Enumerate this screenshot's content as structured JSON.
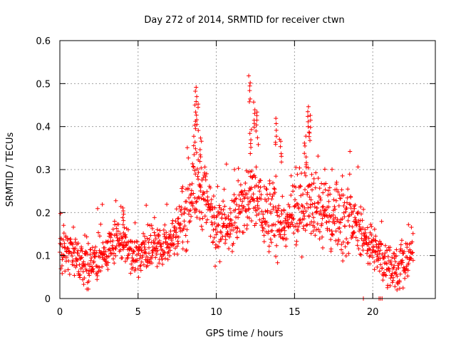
{
  "chart_data": {
    "type": "scatter",
    "title": "Day 272 of 2014, SRMTID for receiver ctwn",
    "xlabel": "GPS time / hours",
    "ylabel": "SRMTID / TECUs",
    "xlim": [
      0,
      24
    ],
    "ylim": [
      0,
      0.6
    ],
    "xticks": [
      0,
      5,
      10,
      15,
      20
    ],
    "xtick_labels": [
      "0",
      "5",
      "10",
      "15",
      "20"
    ],
    "yticks": [
      0,
      0.1,
      0.2,
      0.3,
      0.4,
      0.5,
      0.6
    ],
    "ytick_labels": [
      "0",
      "0.1",
      "0.2",
      "0.3",
      "0.4",
      "0.5",
      "0.6"
    ],
    "grid": true,
    "marker": "+",
    "marker_color": "#ff0000",
    "series": [
      {
        "name": "SRMTID",
        "profile_x": [
          0,
          0.5,
          1,
          1.5,
          2,
          2.5,
          3,
          3.5,
          4,
          4.5,
          5,
          5.5,
          6,
          6.5,
          7,
          7.5,
          8,
          8.5,
          9,
          9.5,
          10,
          10.5,
          11,
          11.5,
          12,
          12.5,
          13,
          13.5,
          14,
          14.5,
          15,
          15.5,
          16,
          16.5,
          17,
          17.5,
          18,
          18.5,
          19,
          19.5,
          20,
          20.5,
          21,
          21.5,
          22,
          22.5
        ],
        "profile_y": [
          0.12,
          0.11,
          0.1,
          0.08,
          0.08,
          0.09,
          0.11,
          0.13,
          0.14,
          0.11,
          0.1,
          0.11,
          0.12,
          0.12,
          0.13,
          0.16,
          0.2,
          0.26,
          0.25,
          0.21,
          0.19,
          0.17,
          0.18,
          0.2,
          0.23,
          0.24,
          0.2,
          0.19,
          0.18,
          0.17,
          0.19,
          0.22,
          0.25,
          0.22,
          0.2,
          0.19,
          0.2,
          0.19,
          0.17,
          0.14,
          0.12,
          0.09,
          0.08,
          0.07,
          0.07,
          0.12
        ],
        "spikes": [
          {
            "x": 8.7,
            "y": 0.5
          },
          {
            "x": 8.8,
            "y": 0.46
          },
          {
            "x": 8.6,
            "y": 0.42
          },
          {
            "x": 12.1,
            "y": 0.52
          },
          {
            "x": 12.4,
            "y": 0.46
          },
          {
            "x": 12.6,
            "y": 0.44
          },
          {
            "x": 13.8,
            "y": 0.42
          },
          {
            "x": 14.1,
            "y": 0.38
          },
          {
            "x": 15.9,
            "y": 0.45
          },
          {
            "x": 16.0,
            "y": 0.43
          },
          {
            "x": 15.7,
            "y": 0.38
          },
          {
            "x": 12.2,
            "y": 0.4
          },
          {
            "x": 9.0,
            "y": 0.38
          },
          {
            "x": 4.1,
            "y": 0.21
          }
        ],
        "zero_points": [
          {
            "x": 19.4,
            "y": 0
          },
          {
            "x": 20.4,
            "y": 0
          },
          {
            "x": 20.5,
            "y": 0
          },
          {
            "x": 20.6,
            "y": 0
          }
        ],
        "x_end": 22.6
      }
    ]
  }
}
